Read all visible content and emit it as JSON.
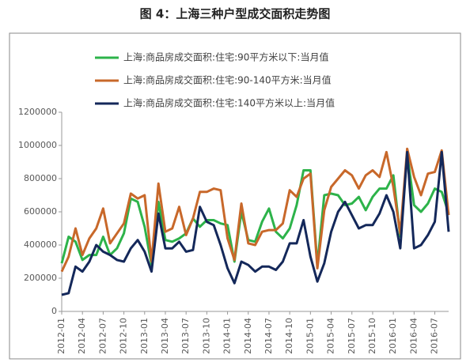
{
  "chart_data": {
    "type": "line",
    "title": "图 4：上海三种户型成交面积走势图",
    "categories": [
      "2012-01",
      null,
      null,
      "2012-04",
      null,
      null,
      "2012-07",
      null,
      null,
      "2012-10",
      null,
      null,
      "2013-01",
      null,
      null,
      "2013-04",
      null,
      null,
      "2013-07",
      null,
      null,
      "2013-10",
      null,
      null,
      "2014-01",
      null,
      null,
      "2014-04",
      null,
      null,
      "2014-07",
      null,
      null,
      "2014-10",
      null,
      null,
      "2015-01",
      null,
      null,
      "2015-04",
      null,
      null,
      "2015-07",
      null,
      null,
      "2015-10",
      null,
      null,
      "2016-01",
      null,
      null,
      "2016-04",
      null,
      null,
      "2016-07",
      null,
      null
    ],
    "series": [
      {
        "name": "上海:商品房成交面积:住宅:90平方米以下:当月值",
        "color": "#2db34a",
        "values": [
          290000,
          450000,
          420000,
          310000,
          340000,
          340000,
          450000,
          340000,
          380000,
          470000,
          680000,
          660000,
          510000,
          280000,
          660000,
          430000,
          420000,
          440000,
          470000,
          560000,
          510000,
          550000,
          550000,
          530000,
          520000,
          300000,
          600000,
          430000,
          420000,
          540000,
          620000,
          480000,
          440000,
          500000,
          640000,
          850000,
          850000,
          280000,
          700000,
          710000,
          700000,
          640000,
          650000,
          690000,
          610000,
          690000,
          740000,
          740000,
          820000,
          450000,
          950000,
          640000,
          600000,
          650000,
          740000,
          720000,
          590000
        ]
      },
      {
        "name": "上海:商品房成交面积:住宅:90-140平方米:当月值",
        "color": "#c8682a",
        "values": [
          240000,
          330000,
          500000,
          340000,
          440000,
          500000,
          620000,
          410000,
          470000,
          530000,
          710000,
          680000,
          700000,
          300000,
          770000,
          480000,
          500000,
          630000,
          460000,
          560000,
          720000,
          720000,
          740000,
          730000,
          440000,
          310000,
          650000,
          410000,
          400000,
          480000,
          490000,
          490000,
          530000,
          730000,
          690000,
          800000,
          830000,
          260000,
          610000,
          750000,
          800000,
          850000,
          820000,
          740000,
          820000,
          850000,
          810000,
          960000,
          750000,
          470000,
          980000,
          810000,
          700000,
          830000,
          840000,
          970000,
          580000
        ]
      },
      {
        "name": "上海:商品房成交面积:住宅:140平方米以上:当月值",
        "color": "#14285a",
        "values": [
          100000,
          110000,
          270000,
          240000,
          300000,
          400000,
          360000,
          340000,
          310000,
          300000,
          380000,
          430000,
          360000,
          240000,
          590000,
          380000,
          380000,
          420000,
          360000,
          370000,
          630000,
          540000,
          520000,
          400000,
          260000,
          170000,
          300000,
          280000,
          240000,
          270000,
          270000,
          250000,
          300000,
          410000,
          410000,
          550000,
          330000,
          180000,
          290000,
          480000,
          600000,
          660000,
          580000,
          500000,
          520000,
          520000,
          590000,
          700000,
          600000,
          380000,
          960000,
          380000,
          400000,
          460000,
          540000,
          960000,
          480000
        ]
      }
    ],
    "ylim": [
      0,
      1200000
    ],
    "yticks": [
      0,
      200000,
      400000,
      600000,
      800000,
      1000000,
      1200000
    ]
  }
}
